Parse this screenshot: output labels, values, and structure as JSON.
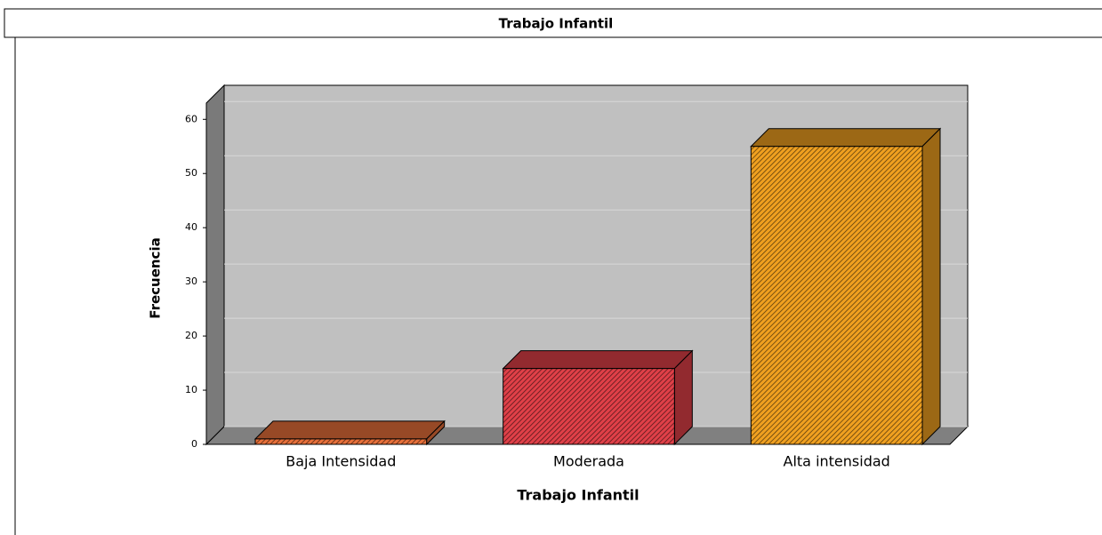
{
  "chart_data": {
    "type": "bar3d",
    "title": "Trabajo Infantil",
    "x_label": "Trabajo Infantil",
    "y_label": "Frecuencia",
    "categories": [
      "Baja Intensidad",
      "Moderada",
      "Alta intensidad"
    ],
    "values": [
      1,
      14,
      55
    ],
    "colors": [
      "#e8703a",
      "#e04048",
      "#f0a020"
    ],
    "ylim": [
      0,
      63
    ],
    "yticks": [
      0,
      10,
      20,
      30,
      40,
      50,
      60
    ],
    "grid": true
  }
}
